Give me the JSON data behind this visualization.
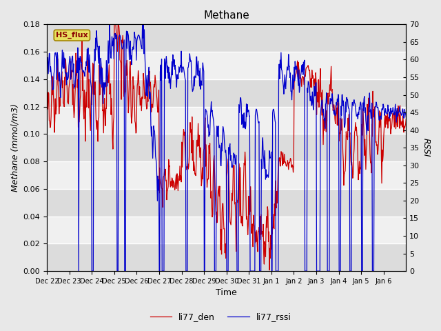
{
  "title": "Methane",
  "xlabel": "Time",
  "ylabel_left": "Methane (mmol/m3)",
  "ylabel_right": "RSSI",
  "left_ylim": [
    0.0,
    0.18
  ],
  "right_ylim": [
    0,
    70
  ],
  "left_yticks": [
    0.0,
    0.02,
    0.04,
    0.06,
    0.08,
    0.1,
    0.12,
    0.14,
    0.16,
    0.18
  ],
  "right_yticks": [
    0,
    5,
    10,
    15,
    20,
    25,
    30,
    35,
    40,
    45,
    50,
    55,
    60,
    65,
    70
  ],
  "xtick_labels": [
    "Dec 22",
    "Dec 23",
    "Dec 24",
    "Dec 25",
    "Dec 26",
    "Dec 27",
    "Dec 28",
    "Dec 29",
    "Dec 30",
    "Dec 31",
    "Jan 1",
    "Jan 2",
    "Jan 3",
    "Jan 4",
    "Jan 5",
    "Jan 6"
  ],
  "line1_color": "#cc0000",
  "line2_color": "#0000cc",
  "legend_line1": "li77_den",
  "legend_line2": "li77_rssi",
  "outer_bg_color": "#e8e8e8",
  "plot_bg_light": "#f0f0f0",
  "plot_bg_dark": "#dcdcdc",
  "annotation_text": "HS_flux",
  "annotation_bg": "#e8e060",
  "annotation_border": "#a08000",
  "title_fontsize": 11,
  "axis_label_fontsize": 9,
  "tick_fontsize": 8,
  "legend_fontsize": 9
}
